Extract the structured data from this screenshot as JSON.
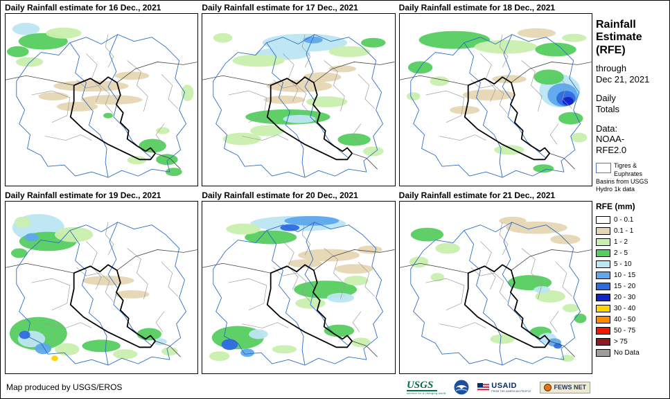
{
  "panels": [
    {
      "title": "Daily Rainfall estimate for 16 Dec., 2021",
      "patches": [
        [
          30,
          22,
          20,
          9,
          "c5"
        ],
        [
          55,
          40,
          36,
          12,
          "g2"
        ],
        [
          18,
          55,
          16,
          8,
          "g2"
        ],
        [
          85,
          28,
          26,
          8,
          "g1"
        ],
        [
          35,
          70,
          20,
          7,
          "g1"
        ],
        [
          125,
          105,
          55,
          8,
          "t"
        ],
        [
          155,
          125,
          45,
          7,
          "t"
        ],
        [
          105,
          135,
          30,
          7,
          "t"
        ],
        [
          185,
          90,
          25,
          6,
          "t"
        ],
        [
          70,
          120,
          22,
          6,
          "t"
        ],
        [
          215,
          192,
          20,
          10,
          "g2"
        ],
        [
          236,
          212,
          16,
          8,
          "g2"
        ],
        [
          192,
          213,
          14,
          6,
          "g1"
        ],
        [
          246,
          230,
          12,
          6,
          "g2"
        ],
        [
          266,
          115,
          9,
          12,
          "g1"
        ],
        [
          150,
          148,
          7,
          4,
          "g2"
        ],
        [
          230,
          170,
          10,
          5,
          "g1"
        ]
      ]
    },
    {
      "title": "Daily Rainfall estimate for 17 Dec., 2021",
      "patches": [
        [
          150,
          42,
          62,
          13,
          "c5"
        ],
        [
          118,
          58,
          40,
          9,
          "c5"
        ],
        [
          162,
          38,
          14,
          5,
          "b10"
        ],
        [
          82,
          68,
          38,
          9,
          "g1"
        ],
        [
          215,
          55,
          30,
          8,
          "g1"
        ],
        [
          250,
          42,
          18,
          7,
          "g2"
        ],
        [
          142,
          105,
          48,
          9,
          "t"
        ],
        [
          175,
          92,
          28,
          7,
          "t"
        ],
        [
          120,
          125,
          30,
          6,
          "t"
        ],
        [
          205,
          80,
          20,
          5,
          "t"
        ],
        [
          125,
          150,
          62,
          11,
          "g2"
        ],
        [
          182,
          128,
          30,
          8,
          "g1"
        ],
        [
          142,
          153,
          24,
          6,
          "c5"
        ],
        [
          95,
          170,
          25,
          8,
          "g1"
        ],
        [
          58,
          182,
          28,
          9,
          "g1"
        ],
        [
          222,
          183,
          24,
          9,
          "g2"
        ],
        [
          250,
          200,
          15,
          7,
          "g1"
        ],
        [
          30,
          35,
          14,
          7,
          "g1"
        ]
      ]
    },
    {
      "title": "Daily Rainfall estimate for 18 Dec., 2021",
      "patches": [
        [
          80,
          38,
          52,
          13,
          "g2"
        ],
        [
          155,
          48,
          46,
          10,
          "g1"
        ],
        [
          228,
          52,
          30,
          10,
          "g2"
        ],
        [
          200,
          28,
          28,
          7,
          "t"
        ],
        [
          255,
          35,
          18,
          6,
          "g1"
        ],
        [
          234,
          112,
          30,
          24,
          "c5"
        ],
        [
          238,
          118,
          22,
          17,
          "b10"
        ],
        [
          243,
          123,
          14,
          11,
          "b15"
        ],
        [
          246,
          127,
          8,
          6,
          "b20"
        ],
        [
          218,
          92,
          22,
          11,
          "g2"
        ],
        [
          250,
          152,
          18,
          9,
          "g2"
        ],
        [
          262,
          180,
          12,
          7,
          "g1"
        ],
        [
          30,
          78,
          18,
          9,
          "g2"
        ],
        [
          58,
          98,
          14,
          7,
          "g1"
        ],
        [
          20,
          120,
          10,
          6,
          "g1"
        ],
        [
          130,
          118,
          38,
          8,
          "t"
        ],
        [
          160,
          95,
          25,
          6,
          "t"
        ],
        [
          95,
          140,
          22,
          6,
          "t"
        ],
        [
          160,
          198,
          22,
          7,
          "g1"
        ],
        [
          210,
          225,
          15,
          6,
          "g2"
        ]
      ]
    },
    {
      "title": "Daily Rainfall estimate for 19 Dec., 2021",
      "patches": [
        [
          48,
          38,
          38,
          20,
          "c5"
        ],
        [
          62,
          58,
          42,
          14,
          "g2"
        ],
        [
          38,
          52,
          10,
          6,
          "b10"
        ],
        [
          100,
          48,
          28,
          11,
          "g1"
        ],
        [
          25,
          30,
          12,
          8,
          "g1"
        ],
        [
          20,
          75,
          12,
          7,
          "g2"
        ],
        [
          150,
          115,
          38,
          7,
          "t"
        ],
        [
          185,
          135,
          25,
          6,
          "t"
        ],
        [
          48,
          192,
          42,
          24,
          "g2"
        ],
        [
          38,
          200,
          20,
          12,
          "c5"
        ],
        [
          55,
          214,
          12,
          8,
          "b10"
        ],
        [
          28,
          194,
          8,
          6,
          "b15"
        ],
        [
          72,
          228,
          5,
          4,
          "y"
        ],
        [
          90,
          215,
          18,
          9,
          "g1"
        ],
        [
          140,
          210,
          28,
          9,
          "g2"
        ],
        [
          175,
          222,
          18,
          7,
          "g1"
        ],
        [
          210,
          193,
          18,
          9,
          "g2"
        ],
        [
          226,
          204,
          10,
          5,
          "c5"
        ],
        [
          240,
          218,
          12,
          6,
          "g1"
        ]
      ]
    },
    {
      "title": "Daily Rainfall estimate for 20 Dec., 2021",
      "patches": [
        [
          140,
          32,
          70,
          11,
          "c5"
        ],
        [
          160,
          28,
          40,
          7,
          "b10"
        ],
        [
          128,
          38,
          14,
          5,
          "b15"
        ],
        [
          100,
          52,
          38,
          10,
          "g2"
        ],
        [
          60,
          40,
          25,
          8,
          "g1"
        ],
        [
          185,
          78,
          45,
          9,
          "t"
        ],
        [
          222,
          98,
          28,
          7,
          "t"
        ],
        [
          245,
          70,
          18,
          6,
          "t"
        ],
        [
          150,
          90,
          25,
          6,
          "t"
        ],
        [
          180,
          128,
          46,
          13,
          "g2"
        ],
        [
          202,
          140,
          20,
          7,
          "c5"
        ],
        [
          158,
          148,
          22,
          8,
          "g1"
        ],
        [
          225,
          115,
          18,
          7,
          "g1"
        ],
        [
          52,
          198,
          38,
          17,
          "g2"
        ],
        [
          40,
          208,
          12,
          8,
          "b15"
        ],
        [
          66,
          220,
          10,
          6,
          "b10"
        ],
        [
          82,
          193,
          14,
          7,
          "c5"
        ],
        [
          25,
          225,
          15,
          7,
          "g1"
        ],
        [
          200,
          188,
          22,
          9,
          "g2"
        ],
        [
          232,
          205,
          14,
          7,
          "g1"
        ],
        [
          120,
          215,
          18,
          6,
          "g1"
        ]
      ]
    },
    {
      "title": "Daily Rainfall estimate for 21 Dec., 2021",
      "patches": [
        [
          40,
          48,
          24,
          10,
          "g2"
        ],
        [
          70,
          68,
          18,
          8,
          "g1"
        ],
        [
          28,
          88,
          14,
          8,
          "g1"
        ],
        [
          55,
          110,
          10,
          6,
          "g1"
        ],
        [
          200,
          38,
          45,
          9,
          "t"
        ],
        [
          242,
          55,
          22,
          7,
          "t"
        ],
        [
          165,
          28,
          20,
          6,
          "t"
        ],
        [
          190,
          118,
          32,
          11,
          "g2"
        ],
        [
          220,
          138,
          22,
          9,
          "g1"
        ],
        [
          208,
          128,
          12,
          5,
          "c5"
        ],
        [
          250,
          155,
          12,
          6,
          "g1"
        ],
        [
          150,
          200,
          18,
          7,
          "g1"
        ],
        [
          206,
          190,
          16,
          8,
          "g2"
        ],
        [
          216,
          199,
          13,
          8,
          "c5"
        ],
        [
          226,
          205,
          10,
          6,
          "b10"
        ],
        [
          231,
          210,
          6,
          4,
          "b15"
        ],
        [
          264,
          170,
          9,
          7,
          "g2"
        ],
        [
          245,
          228,
          10,
          5,
          "g1"
        ]
      ]
    }
  ],
  "palette": {
    "t": "#E6D7B4",
    "g1": "#C9EFAE",
    "g2": "#55CE5F",
    "c5": "#BCE6F2",
    "b10": "#5FA8EC",
    "b15": "#2F6BE0",
    "b20": "#1222C8",
    "y": "#FFD400"
  },
  "map_colors": {
    "country_border": "#000000",
    "basin": "#2B6CC4",
    "admin": "#9B9B9B",
    "neighbor": "#444444"
  },
  "sidebar": {
    "title": "Rainfall Estimate (RFE)",
    "through_word": "through",
    "through_date": "Dec 21, 2021",
    "totals": "Daily Totals",
    "data_source": "Data: NOAA-RFE2.0",
    "basin_label": "Tigres & Euphrates Basins from USGS Hydro 1k data",
    "legend": {
      "title": "RFE (mm)",
      "entries": [
        {
          "label": "0 - 0.1",
          "color": "#FFFFFF"
        },
        {
          "label": "0.1 - 1",
          "color": "#E6D7B4"
        },
        {
          "label": "1 - 2",
          "color": "#C9EFAE"
        },
        {
          "label": "2 - 5",
          "color": "#55CE5F"
        },
        {
          "label": "5 - 10",
          "color": "#BCE6F2"
        },
        {
          "label": "10 - 15",
          "color": "#5FA8EC"
        },
        {
          "label": "15 - 20",
          "color": "#2F6BE0"
        },
        {
          "label": "20 - 30",
          "color": "#1222C8"
        },
        {
          "label": "30 - 40",
          "color": "#FFD400"
        },
        {
          "label": "40 - 50",
          "color": "#FF8A00"
        },
        {
          "label": "50 - 75",
          "color": "#F01800"
        },
        {
          "label": "> 75",
          "color": "#8D1A25"
        },
        {
          "label": "No Data",
          "color": "#9E9E9E"
        }
      ]
    }
  },
  "footer": {
    "credit": "Map produced by USGS/EROS",
    "usgs": {
      "name": "USGS",
      "tagline": "science for a changing world"
    },
    "noaa": {
      "name": "NOAA"
    },
    "usaid": {
      "name": "USAID",
      "tagline": "FROM THE AMERICAN PEOPLE"
    },
    "fewsnet": {
      "name": "FEWS NET"
    }
  }
}
